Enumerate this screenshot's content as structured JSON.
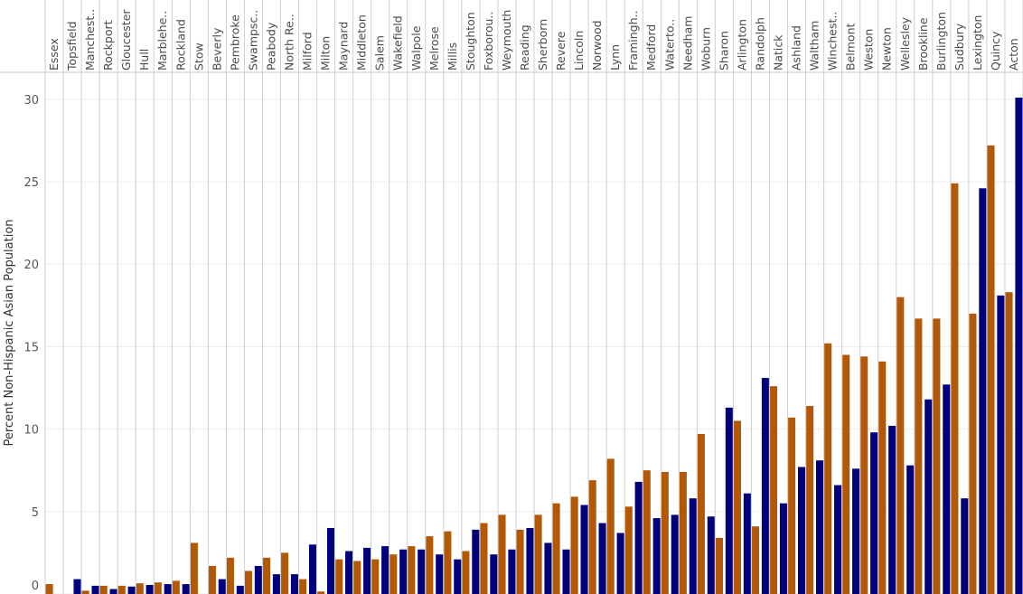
{
  "chart_data": {
    "type": "bar",
    "ylabel": "Percent Non-Hispanic Asian Population",
    "ylim": [
      0,
      30.7
    ],
    "yticks": [
      0,
      5,
      10,
      15,
      20,
      25,
      30
    ],
    "series_colors": [
      "#b35806",
      "#00007a"
    ],
    "categories": [
      "Essex",
      "Topsfield",
      "Manchest..",
      "Rockport",
      "Gloucester",
      "Hull",
      "Marblehe..",
      "Rockland",
      "Stow",
      "Beverly",
      "Pembroke",
      "Swampsc..",
      "Peabody",
      "North Re..",
      "Milford",
      "Milton",
      "Maynard",
      "Middleton",
      "Salem",
      "Wakefield",
      "Walpole",
      "Melrose",
      "Millis",
      "Stoughton",
      "Foxborou..",
      "Weymouth",
      "Reading",
      "Sherborn",
      "Revere",
      "Lincoln",
      "Norwood",
      "Lynn",
      "Framingh..",
      "Medford",
      "Waterto..",
      "Needham",
      "Woburn",
      "Sharon",
      "Arlington",
      "Randolph",
      "Natick",
      "Ashland",
      "Waltham",
      "Winchest..",
      "Belmont",
      "Weston",
      "Newton",
      "Wellesley",
      "Brookline",
      "Burlington",
      "Sudbury",
      "Lexington",
      "Quincy",
      "Acton"
    ],
    "pairs": [
      [
        0.6,
        0.0
      ],
      [
        0.0,
        0.9
      ],
      [
        0.2,
        0.5
      ],
      [
        0.5,
        0.3
      ],
      [
        0.5,
        0.45
      ],
      [
        0.65,
        0.55
      ],
      [
        0.7,
        0.6
      ],
      [
        0.8,
        0.6
      ],
      [
        3.1,
        0.0
      ],
      [
        1.7,
        0.9
      ],
      [
        2.2,
        0.5
      ],
      [
        1.4,
        1.7
      ],
      [
        2.2,
        1.2
      ],
      [
        2.5,
        1.2
      ],
      [
        0.9,
        3.0
      ],
      [
        0.15,
        4.0
      ],
      [
        2.1,
        2.6
      ],
      [
        2.0,
        2.8
      ],
      [
        2.1,
        2.9
      ],
      [
        2.4,
        2.7
      ],
      [
        2.9,
        2.7
      ],
      [
        3.5,
        2.4
      ],
      [
        3.8,
        2.1
      ],
      [
        2.6,
        3.9
      ],
      [
        4.3,
        2.4
      ],
      [
        4.8,
        2.7
      ],
      [
        3.9,
        4.0
      ],
      [
        4.8,
        3.1
      ],
      [
        5.5,
        2.7
      ],
      [
        5.9,
        5.4
      ],
      [
        6.9,
        4.3
      ],
      [
        8.2,
        3.7
      ],
      [
        5.3,
        6.8
      ],
      [
        7.5,
        4.6
      ],
      [
        7.4,
        4.8
      ],
      [
        7.4,
        5.8
      ],
      [
        9.7,
        4.7
      ],
      [
        3.4,
        11.3
      ],
      [
        10.5,
        6.1
      ],
      [
        4.1,
        13.1
      ],
      [
        12.6,
        5.5
      ],
      [
        10.7,
        7.7
      ],
      [
        11.4,
        8.1
      ],
      [
        15.2,
        6.6
      ],
      [
        14.5,
        7.6
      ],
      [
        14.4,
        9.8
      ],
      [
        14.1,
        10.2
      ],
      [
        18.0,
        7.8
      ],
      [
        16.7,
        11.8
      ],
      [
        16.7,
        12.7
      ],
      [
        24.9,
        5.8
      ],
      [
        17.0,
        24.6
      ],
      [
        27.2,
        18.1
      ],
      [
        18.3,
        30.1
      ]
    ]
  }
}
